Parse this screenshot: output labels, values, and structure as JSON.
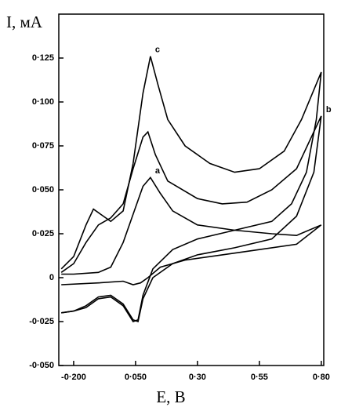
{
  "chart_data": {
    "type": "line",
    "y_label": "I, мА",
    "x_label": "E, B",
    "xlim": [
      -0.26,
      0.81
    ],
    "ylim": [
      -0.05,
      0.15
    ],
    "xticks": [
      {
        "value": -0.2,
        "label": "-0·200"
      },
      {
        "value": 0.05,
        "label": "0·050"
      },
      {
        "value": 0.3,
        "label": "0·30"
      },
      {
        "value": 0.55,
        "label": "0·55"
      },
      {
        "value": 0.8,
        "label": "0·80"
      }
    ],
    "yticks": [
      {
        "value": -0.05,
        "label": "-0·050"
      },
      {
        "value": -0.025,
        "label": "-0·025"
      },
      0,
      {
        "value": 0.025,
        "label": "0·025"
      },
      {
        "value": 0.05,
        "label": "0·050"
      },
      {
        "value": 0.075,
        "label": "0·075"
      },
      {
        "value": 0.1,
        "label": "0·100"
      },
      {
        "value": 0.125,
        "label": "0·125"
      }
    ],
    "series": [
      {
        "name": "c",
        "color": "#000000",
        "x": [
          -0.25,
          -0.2,
          -0.15,
          -0.12,
          -0.09,
          -0.05,
          0.0,
          0.04,
          0.08,
          0.11,
          0.14,
          0.18,
          0.25,
          0.35,
          0.45,
          0.55,
          0.65,
          0.72,
          0.8,
          0.78,
          0.74,
          0.68,
          0.6,
          0.45,
          0.3,
          0.2,
          0.12,
          0.08,
          0.06,
          0.04,
          0.0,
          -0.05,
          -0.1,
          -0.15,
          -0.2,
          -0.25
        ],
        "values": [
          0.005,
          0.012,
          0.03,
          0.039,
          0.036,
          0.032,
          0.038,
          0.065,
          0.105,
          0.126,
          0.11,
          0.09,
          0.075,
          0.065,
          0.06,
          0.062,
          0.072,
          0.09,
          0.117,
          0.09,
          0.06,
          0.042,
          0.032,
          0.027,
          0.022,
          0.016,
          0.005,
          -0.01,
          -0.024,
          -0.025,
          -0.016,
          -0.011,
          -0.012,
          -0.017,
          -0.019,
          -0.02
        ]
      },
      {
        "name": "b",
        "color": "#000000",
        "x": [
          -0.25,
          -0.2,
          -0.15,
          -0.1,
          -0.05,
          0.0,
          0.04,
          0.08,
          0.1,
          0.13,
          0.18,
          0.3,
          0.4,
          0.5,
          0.6,
          0.7,
          0.8,
          0.77,
          0.7,
          0.6,
          0.45,
          0.3,
          0.2,
          0.12,
          0.08,
          0.06,
          0.04,
          0.0,
          -0.05,
          -0.1,
          -0.15,
          -0.2,
          -0.25
        ],
        "values": [
          0.003,
          0.008,
          0.02,
          0.03,
          0.034,
          0.042,
          0.062,
          0.08,
          0.083,
          0.07,
          0.055,
          0.045,
          0.042,
          0.043,
          0.05,
          0.062,
          0.092,
          0.06,
          0.035,
          0.022,
          0.017,
          0.013,
          0.008,
          0.0,
          -0.012,
          -0.025,
          -0.024,
          -0.015,
          -0.01,
          -0.011,
          -0.016,
          -0.019,
          -0.02
        ]
      },
      {
        "name": "a",
        "color": "#000000",
        "x": [
          -0.25,
          -0.2,
          -0.1,
          -0.05,
          0.0,
          0.05,
          0.08,
          0.11,
          0.15,
          0.2,
          0.3,
          0.45,
          0.6,
          0.7,
          0.8,
          0.7,
          0.55,
          0.4,
          0.25,
          0.15,
          0.1,
          0.07,
          0.04,
          0.0,
          -0.1,
          -0.25
        ],
        "values": [
          0.002,
          0.002,
          0.003,
          0.006,
          0.02,
          0.04,
          0.052,
          0.057,
          0.048,
          0.038,
          0.03,
          0.027,
          0.025,
          0.024,
          0.03,
          0.019,
          0.016,
          0.013,
          0.01,
          0.006,
          0.0,
          -0.003,
          -0.004,
          -0.002,
          -0.003,
          -0.004
        ]
      }
    ]
  }
}
